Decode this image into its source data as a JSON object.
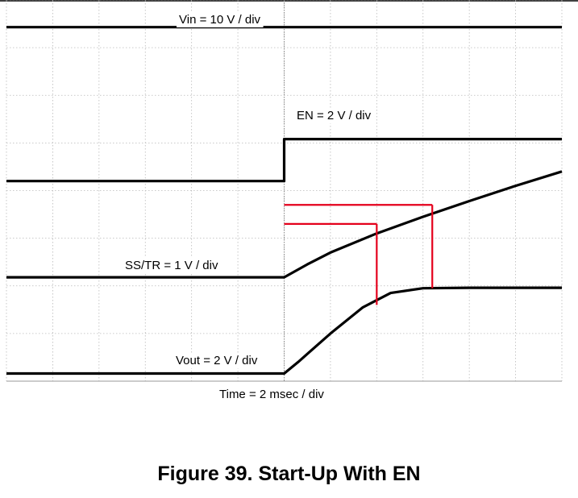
{
  "figure": {
    "caption": "Figure 39. Start-Up With EN"
  },
  "chart_data": {
    "type": "line",
    "x_axis_label": "Time = 2 msec / div",
    "divisions": {
      "x": 12,
      "y": 8
    },
    "x_range_div": [
      0,
      12
    ],
    "y_range_div": [
      0,
      8
    ],
    "grid": true,
    "trigger_div": 6,
    "colors": {
      "trace": "#000000",
      "grid": "#b9b9b9",
      "marker": "#e4001b",
      "frame": "#000000"
    },
    "series": [
      {
        "name": "Vin = 10 V / div",
        "points": [
          [
            0,
            7.43
          ],
          [
            12,
            7.43
          ]
        ]
      },
      {
        "name": "EN = 2 V / div",
        "points": [
          [
            0,
            4.2
          ],
          [
            6.0,
            4.2
          ],
          [
            6.0,
            5.08
          ],
          [
            12,
            5.08
          ]
        ]
      },
      {
        "name": "SS/TR = 1 V / div",
        "points": [
          [
            0,
            2.18
          ],
          [
            6.0,
            2.18
          ],
          [
            6.5,
            2.45
          ],
          [
            7.0,
            2.7
          ],
          [
            8.0,
            3.1
          ],
          [
            9.0,
            3.45
          ],
          [
            10.0,
            3.78
          ],
          [
            11.0,
            4.1
          ],
          [
            12,
            4.4
          ]
        ]
      },
      {
        "name": "Vout = 2 V / div",
        "points": [
          [
            0,
            0.16
          ],
          [
            6.0,
            0.16
          ],
          [
            6.3,
            0.4
          ],
          [
            7.0,
            1.0
          ],
          [
            7.7,
            1.55
          ],
          [
            8.3,
            1.85
          ],
          [
            9.0,
            1.95
          ],
          [
            10.0,
            1.96
          ],
          [
            12,
            1.96
          ]
        ]
      }
    ],
    "annotations": [
      {
        "type": "hline",
        "y": 3.3,
        "x_from": 6.0,
        "x_to": 8.0
      },
      {
        "type": "vline",
        "x": 8.0,
        "y_from": 1.6,
        "y_to": 3.3
      },
      {
        "type": "hline",
        "y": 3.7,
        "x_from": 6.0,
        "x_to": 9.2
      },
      {
        "type": "vline",
        "x": 9.2,
        "y_from": 1.95,
        "y_to": 3.7
      }
    ]
  }
}
